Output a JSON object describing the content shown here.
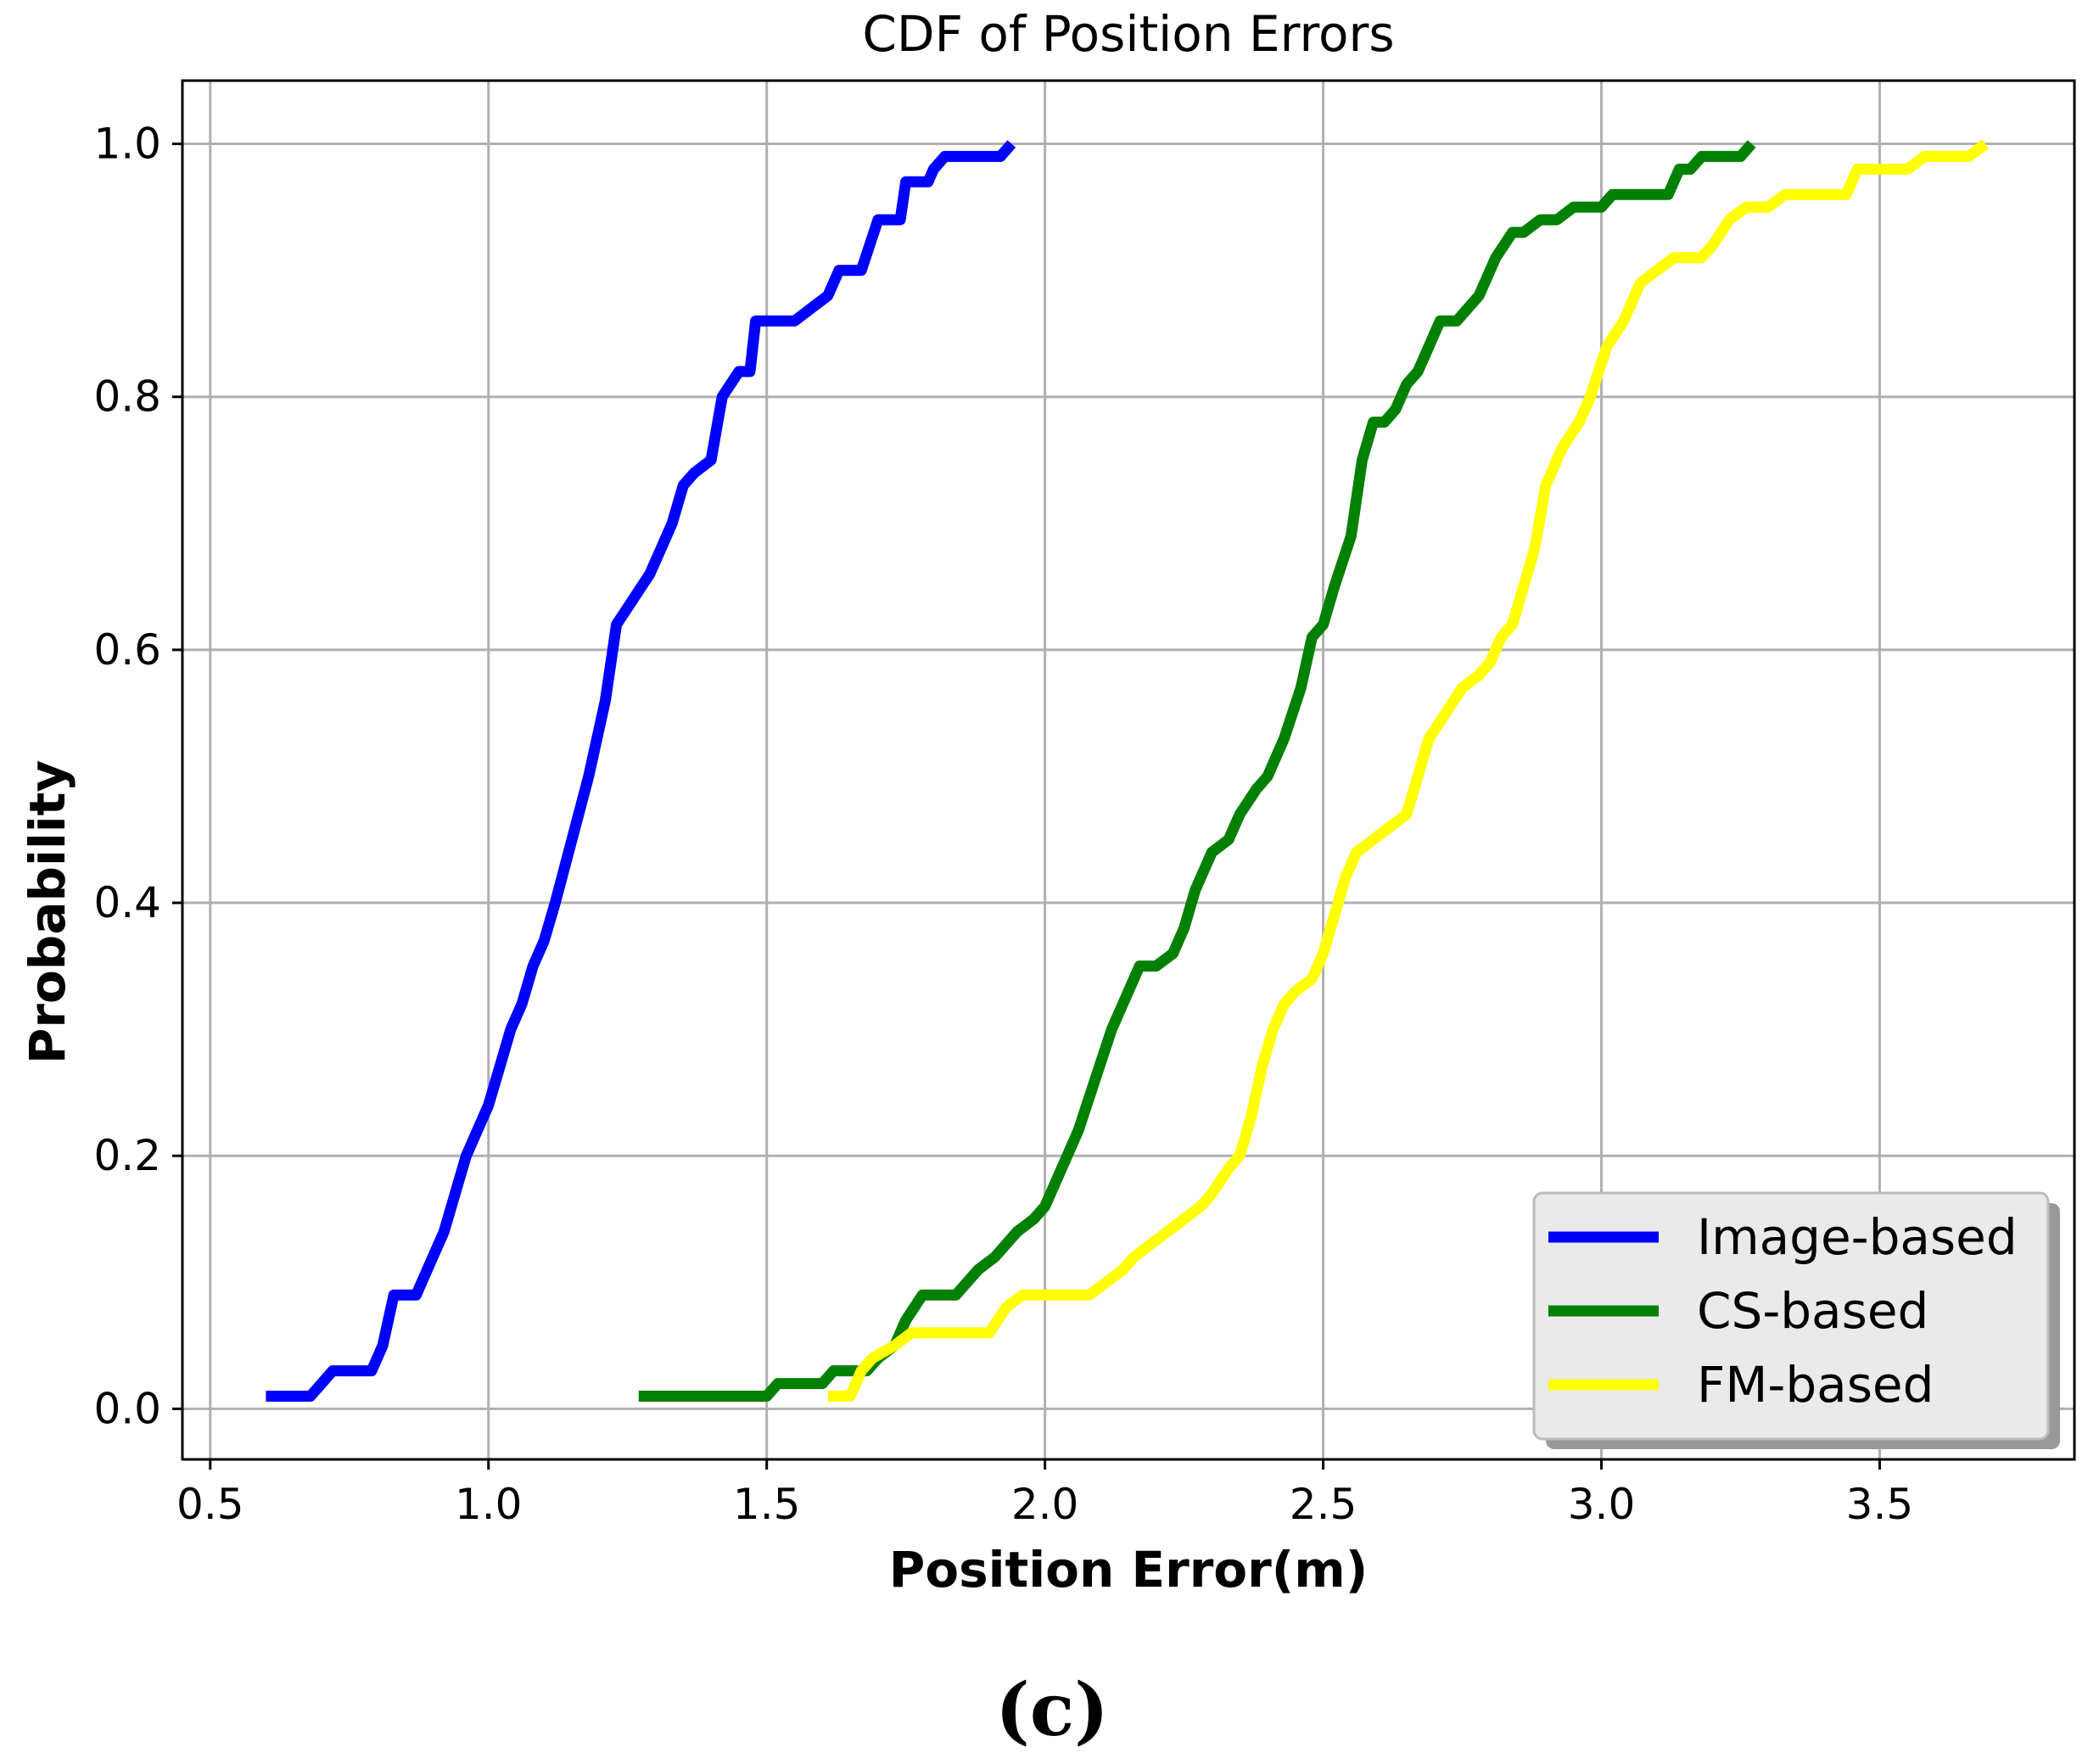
{
  "caption": "(c)",
  "chart_data": {
    "type": "line",
    "title": "CDF of Position Errors",
    "xlabel": "Position Error(m)",
    "ylabel": "Probability",
    "xlim": [
      0.45,
      3.85
    ],
    "ylim": [
      -0.04,
      1.05
    ],
    "x_ticks": [
      0.5,
      1.0,
      1.5,
      2.0,
      2.5,
      3.0,
      3.5
    ],
    "x_tick_labels": [
      "0.5",
      "1.0",
      "1.5",
      "2.0",
      "2.5",
      "3.0",
      "3.5"
    ],
    "y_ticks": [
      0.0,
      0.2,
      0.4,
      0.6,
      0.8,
      1.0
    ],
    "y_tick_labels": [
      "0.0",
      "0.2",
      "0.4",
      "0.6",
      "0.8",
      "1.0"
    ],
    "grid": true,
    "legend_position": "bottom-right",
    "series": [
      {
        "name": "Image-based",
        "color": "#0000ff",
        "points": [
          [
            0.6,
            0.01
          ],
          [
            0.68,
            0.01
          ],
          [
            0.7,
            0.02
          ],
          [
            0.72,
            0.03
          ],
          [
            0.79,
            0.03
          ],
          [
            0.81,
            0.05
          ],
          [
            0.83,
            0.09
          ],
          [
            0.87,
            0.09
          ],
          [
            0.89,
            0.11
          ],
          [
            0.92,
            0.14
          ],
          [
            0.94,
            0.17
          ],
          [
            0.96,
            0.2
          ],
          [
            0.98,
            0.22
          ],
          [
            1.0,
            0.24
          ],
          [
            1.02,
            0.27
          ],
          [
            1.04,
            0.3
          ],
          [
            1.06,
            0.32
          ],
          [
            1.08,
            0.35
          ],
          [
            1.1,
            0.37
          ],
          [
            1.12,
            0.4
          ],
          [
            1.15,
            0.45
          ],
          [
            1.18,
            0.5
          ],
          [
            1.21,
            0.56
          ],
          [
            1.23,
            0.62
          ],
          [
            1.26,
            0.64
          ],
          [
            1.29,
            0.66
          ],
          [
            1.31,
            0.68
          ],
          [
            1.33,
            0.7
          ],
          [
            1.35,
            0.73
          ],
          [
            1.37,
            0.74
          ],
          [
            1.4,
            0.75
          ],
          [
            1.42,
            0.8
          ],
          [
            1.45,
            0.82
          ],
          [
            1.47,
            0.82
          ],
          [
            1.48,
            0.86
          ],
          [
            1.55,
            0.86
          ],
          [
            1.58,
            0.87
          ],
          [
            1.61,
            0.88
          ],
          [
            1.63,
            0.9
          ],
          [
            1.67,
            0.9
          ],
          [
            1.7,
            0.94
          ],
          [
            1.74,
            0.94
          ],
          [
            1.75,
            0.97
          ],
          [
            1.79,
            0.97
          ],
          [
            1.8,
            0.98
          ],
          [
            1.82,
            0.99
          ],
          [
            1.92,
            0.99
          ],
          [
            1.94,
            1.0
          ]
        ]
      },
      {
        "name": "CS-based",
        "color": "#008000",
        "points": [
          [
            1.27,
            0.01
          ],
          [
            1.5,
            0.01
          ],
          [
            1.52,
            0.02
          ],
          [
            1.6,
            0.02
          ],
          [
            1.62,
            0.03
          ],
          [
            1.68,
            0.03
          ],
          [
            1.7,
            0.04
          ],
          [
            1.73,
            0.05
          ],
          [
            1.75,
            0.07
          ],
          [
            1.78,
            0.09
          ],
          [
            1.84,
            0.09
          ],
          [
            1.86,
            0.1
          ],
          [
            1.88,
            0.11
          ],
          [
            1.91,
            0.12
          ],
          [
            1.95,
            0.14
          ],
          [
            1.98,
            0.15
          ],
          [
            2.0,
            0.16
          ],
          [
            2.03,
            0.19
          ],
          [
            2.06,
            0.22
          ],
          [
            2.09,
            0.26
          ],
          [
            2.12,
            0.3
          ],
          [
            2.15,
            0.33
          ],
          [
            2.17,
            0.35
          ],
          [
            2.2,
            0.35
          ],
          [
            2.23,
            0.36
          ],
          [
            2.25,
            0.38
          ],
          [
            2.27,
            0.41
          ],
          [
            2.3,
            0.44
          ],
          [
            2.33,
            0.45
          ],
          [
            2.35,
            0.47
          ],
          [
            2.38,
            0.49
          ],
          [
            2.4,
            0.5
          ],
          [
            2.43,
            0.53
          ],
          [
            2.46,
            0.57
          ],
          [
            2.48,
            0.61
          ],
          [
            2.5,
            0.62
          ],
          [
            2.52,
            0.65
          ],
          [
            2.55,
            0.69
          ],
          [
            2.57,
            0.75
          ],
          [
            2.59,
            0.78
          ],
          [
            2.61,
            0.78
          ],
          [
            2.63,
            0.79
          ],
          [
            2.65,
            0.81
          ],
          [
            2.67,
            0.82
          ],
          [
            2.69,
            0.84
          ],
          [
            2.71,
            0.86
          ],
          [
            2.74,
            0.86
          ],
          [
            2.76,
            0.87
          ],
          [
            2.78,
            0.88
          ],
          [
            2.81,
            0.91
          ],
          [
            2.84,
            0.93
          ],
          [
            2.86,
            0.93
          ],
          [
            2.89,
            0.94
          ],
          [
            2.92,
            0.94
          ],
          [
            2.95,
            0.95
          ],
          [
            3.0,
            0.95
          ],
          [
            3.02,
            0.96
          ],
          [
            3.12,
            0.96
          ],
          [
            3.14,
            0.98
          ],
          [
            3.16,
            0.98
          ],
          [
            3.18,
            0.99
          ],
          [
            3.25,
            0.99
          ],
          [
            3.27,
            1.0
          ]
        ]
      },
      {
        "name": "FM-based",
        "color": "#ffff00",
        "points": [
          [
            1.61,
            0.01
          ],
          [
            1.65,
            0.01
          ],
          [
            1.67,
            0.03
          ],
          [
            1.69,
            0.04
          ],
          [
            1.73,
            0.05
          ],
          [
            1.76,
            0.06
          ],
          [
            1.8,
            0.06
          ],
          [
            1.9,
            0.06
          ],
          [
            1.93,
            0.08
          ],
          [
            1.96,
            0.09
          ],
          [
            2.08,
            0.09
          ],
          [
            2.11,
            0.1
          ],
          [
            2.14,
            0.11
          ],
          [
            2.16,
            0.12
          ],
          [
            2.19,
            0.13
          ],
          [
            2.22,
            0.14
          ],
          [
            2.25,
            0.15
          ],
          [
            2.28,
            0.16
          ],
          [
            2.3,
            0.17
          ],
          [
            2.33,
            0.19
          ],
          [
            2.35,
            0.2
          ],
          [
            2.37,
            0.23
          ],
          [
            2.39,
            0.27
          ],
          [
            2.41,
            0.3
          ],
          [
            2.43,
            0.32
          ],
          [
            2.45,
            0.33
          ],
          [
            2.48,
            0.34
          ],
          [
            2.5,
            0.36
          ],
          [
            2.52,
            0.39
          ],
          [
            2.54,
            0.42
          ],
          [
            2.56,
            0.44
          ],
          [
            2.59,
            0.45
          ],
          [
            2.62,
            0.46
          ],
          [
            2.65,
            0.47
          ],
          [
            2.67,
            0.5
          ],
          [
            2.69,
            0.53
          ],
          [
            2.72,
            0.55
          ],
          [
            2.75,
            0.57
          ],
          [
            2.78,
            0.58
          ],
          [
            2.8,
            0.59
          ],
          [
            2.82,
            0.61
          ],
          [
            2.84,
            0.62
          ],
          [
            2.86,
            0.65
          ],
          [
            2.88,
            0.68
          ],
          [
            2.9,
            0.73
          ],
          [
            2.93,
            0.76
          ],
          [
            2.96,
            0.78
          ],
          [
            2.98,
            0.8
          ],
          [
            3.01,
            0.84
          ],
          [
            3.04,
            0.86
          ],
          [
            3.07,
            0.89
          ],
          [
            3.1,
            0.9
          ],
          [
            3.13,
            0.91
          ],
          [
            3.18,
            0.91
          ],
          [
            3.2,
            0.92
          ],
          [
            3.23,
            0.94
          ],
          [
            3.26,
            0.95
          ],
          [
            3.3,
            0.95
          ],
          [
            3.33,
            0.96
          ],
          [
            3.44,
            0.96
          ],
          [
            3.46,
            0.98
          ],
          [
            3.55,
            0.98
          ],
          [
            3.58,
            0.99
          ],
          [
            3.66,
            0.99
          ],
          [
            3.69,
            1.0
          ]
        ]
      }
    ]
  }
}
